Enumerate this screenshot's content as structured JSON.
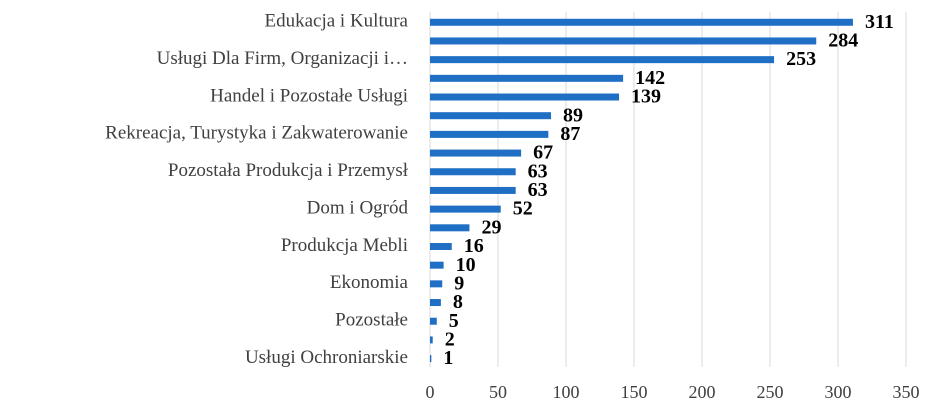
{
  "chart_data": {
    "type": "bar",
    "orientation": "horizontal",
    "categories": [
      "Edukacja i Kultura",
      null,
      "Usługi Dla Firm, Organizacji i…",
      null,
      "Handel i Pozostałe Usługi",
      null,
      "Rekreacja, Turystyka i Zakwaterowanie",
      null,
      "Pozostała Produkcja i Przemysł",
      null,
      "Dom i Ogród",
      null,
      "Produkcja Mebli",
      null,
      "Ekonomia",
      null,
      "Pozostałe",
      null,
      "Usługi Ochroniarskie"
    ],
    "values": [
      311,
      284,
      253,
      142,
      139,
      89,
      87,
      67,
      63,
      63,
      52,
      29,
      16,
      10,
      9,
      8,
      5,
      2,
      1
    ],
    "color": "#1f6fc4",
    "xlim": [
      0,
      350
    ],
    "xticks": [
      0,
      50,
      100,
      150,
      200,
      250,
      300,
      350
    ],
    "grid": true
  }
}
